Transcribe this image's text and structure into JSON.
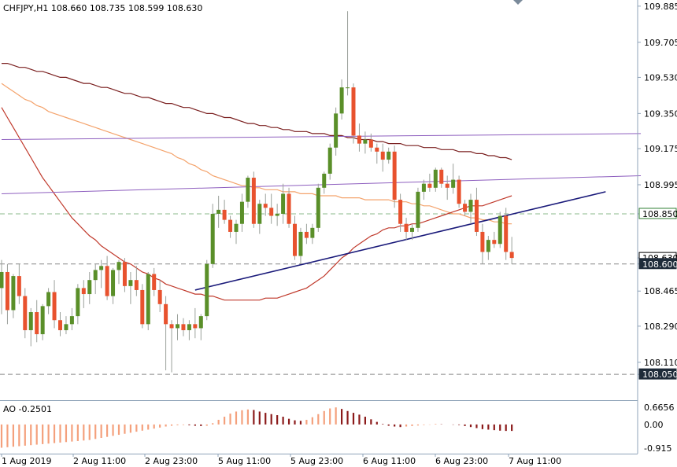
{
  "chart_data": {
    "type": "candlestick",
    "title": "CHFJPY,H1  108.660 108.735 108.599 108.630",
    "symbol": "CHFJPY",
    "timeframe": "H1",
    "ohlc_header": "108.660 108.735 108.599 108.630",
    "last_open": 108.66,
    "last_high": 108.735,
    "last_low": 108.599,
    "last_close": 108.63,
    "ylim": [
      107.98,
      109.9
    ],
    "y_ticks": [
      "109.885",
      "109.705",
      "109.530",
      "109.350",
      "109.175",
      "108.995",
      "108.850",
      "108.630",
      "108.600",
      "108.465",
      "108.290",
      "108.110",
      "108.050"
    ],
    "x_ticks": [
      "1 Aug 2019",
      "2 Aug 11:00",
      "2 Aug 23:00",
      "5 Aug 11:00",
      "5 Aug 23:00",
      "6 Aug 11:00",
      "6 Aug 23:00",
      "7 Aug 11:00"
    ],
    "price_labels": [
      {
        "value": 108.85,
        "text": "108.850",
        "bg": "#ffffff",
        "fg": "#000000",
        "border": "#2e7d32"
      },
      {
        "value": 108.63,
        "text": "108.630",
        "bg": "#ffffff",
        "fg": "#000000",
        "border": "#000000"
      },
      {
        "value": 108.6,
        "text": "108.600",
        "bg": "#1e2b39",
        "fg": "#ffffff",
        "border": "#1e2b39"
      },
      {
        "value": 108.05,
        "text": "108.050",
        "bg": "#1e2b39",
        "fg": "#ffffff",
        "border": "#1e2b39"
      }
    ],
    "horizontal_levels": [
      {
        "value": 108.85,
        "style": "dashed",
        "color": "#8bb88b"
      },
      {
        "value": 108.6,
        "style": "dashed",
        "color": "#888888"
      },
      {
        "value": 108.05,
        "style": "dashed",
        "color": "#888888"
      }
    ],
    "candles": [
      [
        108.48,
        108.62,
        108.35,
        108.56
      ],
      [
        108.56,
        108.6,
        108.3,
        108.37
      ],
      [
        108.37,
        108.55,
        108.33,
        108.54
      ],
      [
        108.54,
        108.6,
        108.4,
        108.44
      ],
      [
        108.44,
        108.48,
        108.23,
        108.27
      ],
      [
        108.27,
        108.38,
        108.19,
        108.36
      ],
      [
        108.36,
        108.42,
        108.21,
        108.25
      ],
      [
        108.25,
        108.4,
        108.22,
        108.39
      ],
      [
        108.39,
        108.48,
        108.35,
        108.46
      ],
      [
        108.46,
        108.52,
        108.28,
        108.32
      ],
      [
        108.32,
        108.36,
        108.24,
        108.27
      ],
      [
        108.27,
        108.34,
        108.25,
        108.3
      ],
      [
        108.3,
        108.38,
        108.27,
        108.34
      ],
      [
        108.34,
        108.5,
        108.3,
        108.48
      ],
      [
        108.48,
        108.52,
        108.38,
        108.45
      ],
      [
        108.45,
        108.56,
        108.4,
        108.52
      ],
      [
        108.52,
        108.6,
        108.45,
        108.57
      ],
      [
        108.57,
        108.62,
        108.48,
        108.59
      ],
      [
        108.59,
        108.64,
        108.42,
        108.44
      ],
      [
        108.44,
        108.58,
        108.4,
        108.57
      ],
      [
        108.57,
        108.62,
        108.5,
        108.61
      ],
      [
        108.61,
        108.63,
        108.46,
        108.49
      ],
      [
        108.49,
        108.56,
        108.4,
        108.52
      ],
      [
        108.52,
        108.59,
        108.44,
        108.47
      ],
      [
        108.47,
        108.5,
        108.28,
        108.3
      ],
      [
        108.3,
        108.56,
        108.27,
        108.55
      ],
      [
        108.55,
        108.58,
        108.44,
        108.47
      ],
      [
        108.47,
        108.52,
        108.36,
        108.4
      ],
      [
        108.4,
        108.44,
        108.07,
        108.3
      ],
      [
        108.3,
        108.32,
        108.06,
        108.28
      ],
      [
        108.28,
        108.35,
        108.22,
        108.3
      ],
      [
        108.3,
        108.33,
        108.24,
        108.27
      ],
      [
        108.27,
        108.32,
        108.22,
        108.3
      ],
      [
        108.3,
        108.38,
        108.23,
        108.28
      ],
      [
        108.28,
        108.35,
        108.22,
        108.34
      ],
      [
        108.34,
        108.62,
        108.32,
        108.6
      ],
      [
        108.6,
        108.9,
        108.58,
        108.85
      ],
      [
        108.85,
        108.94,
        108.78,
        108.87
      ],
      [
        108.87,
        108.92,
        108.8,
        108.82
      ],
      [
        108.82,
        108.84,
        108.73,
        108.76
      ],
      [
        108.76,
        108.82,
        108.7,
        108.8
      ],
      [
        108.8,
        108.95,
        108.76,
        108.91
      ],
      [
        108.91,
        109.04,
        108.88,
        109.03
      ],
      [
        109.03,
        109.06,
        108.78,
        108.8
      ],
      [
        108.8,
        108.92,
        108.75,
        108.9
      ],
      [
        108.9,
        108.95,
        108.84,
        108.88
      ],
      [
        108.88,
        108.95,
        108.8,
        108.84
      ],
      [
        108.84,
        108.9,
        108.79,
        108.85
      ],
      [
        108.85,
        109.0,
        108.8,
        108.95
      ],
      [
        108.95,
        108.98,
        108.78,
        108.8
      ],
      [
        108.8,
        108.84,
        108.62,
        108.64
      ],
      [
        108.64,
        108.78,
        108.6,
        108.76
      ],
      [
        108.76,
        108.8,
        108.7,
        108.73
      ],
      [
        108.73,
        108.8,
        108.7,
        108.78
      ],
      [
        108.78,
        109.0,
        108.76,
        108.98
      ],
      [
        108.98,
        109.06,
        108.95,
        109.05
      ],
      [
        109.05,
        109.2,
        109.02,
        109.18
      ],
      [
        109.18,
        109.38,
        109.14,
        109.35
      ],
      [
        109.35,
        109.52,
        109.32,
        109.48
      ],
      [
        109.48,
        109.86,
        109.44,
        109.48
      ],
      [
        109.48,
        109.5,
        109.2,
        109.24
      ],
      [
        109.24,
        109.3,
        109.16,
        109.2
      ],
      [
        109.2,
        109.26,
        109.15,
        109.22
      ],
      [
        109.22,
        109.25,
        109.16,
        109.18
      ],
      [
        109.18,
        109.2,
        109.1,
        109.16
      ],
      [
        109.16,
        109.2,
        109.06,
        109.12
      ],
      [
        109.12,
        109.18,
        109.1,
        109.16
      ],
      [
        109.16,
        109.19,
        108.88,
        108.92
      ],
      [
        108.92,
        108.95,
        108.76,
        108.8
      ],
      [
        108.8,
        108.83,
        108.72,
        108.76
      ],
      [
        108.76,
        108.8,
        108.72,
        108.78
      ],
      [
        108.78,
        108.98,
        108.76,
        108.96
      ],
      [
        108.96,
        109.02,
        108.92,
        109.0
      ],
      [
        109.0,
        109.05,
        108.96,
        108.98
      ],
      [
        108.98,
        109.08,
        108.96,
        109.07
      ],
      [
        109.07,
        109.08,
        108.98,
        109.0
      ],
      [
        109.0,
        109.04,
        108.92,
        108.98
      ],
      [
        108.98,
        109.1,
        108.95,
        109.02
      ],
      [
        109.02,
        109.04,
        108.88,
        108.9
      ],
      [
        108.9,
        108.92,
        108.84,
        108.86
      ],
      [
        108.86,
        108.95,
        108.8,
        108.92
      ],
      [
        108.92,
        108.98,
        108.74,
        108.76
      ],
      [
        108.76,
        108.8,
        108.6,
        108.66
      ],
      [
        108.66,
        108.74,
        108.62,
        108.72
      ],
      [
        108.72,
        108.76,
        108.68,
        108.7
      ],
      [
        108.7,
        108.86,
        108.68,
        108.84
      ],
      [
        108.84,
        108.88,
        108.62,
        108.66
      ],
      [
        108.66,
        108.735,
        108.599,
        108.63
      ]
    ],
    "series": [
      {
        "name": "",
        "color": "#7a1f1f",
        "values": [
          109.6,
          109.6,
          109.59,
          109.58,
          109.58,
          109.57,
          109.56,
          109.56,
          109.55,
          109.54,
          109.53,
          109.53,
          109.52,
          109.51,
          109.5,
          109.5,
          109.49,
          109.48,
          109.48,
          109.47,
          109.46,
          109.45,
          109.45,
          109.44,
          109.43,
          109.43,
          109.42,
          109.41,
          109.4,
          109.4,
          109.39,
          109.38,
          109.38,
          109.37,
          109.36,
          109.35,
          109.35,
          109.34,
          109.33,
          109.33,
          109.32,
          109.31,
          109.3,
          109.3,
          109.29,
          109.29,
          109.28,
          109.28,
          109.27,
          109.27,
          109.26,
          109.26,
          109.26,
          109.25,
          109.25,
          109.25,
          109.24,
          109.24,
          109.24,
          109.23,
          109.23,
          109.22,
          109.22,
          109.22,
          109.21,
          109.21,
          109.2,
          109.2,
          109.2,
          109.19,
          109.19,
          109.19,
          109.18,
          109.18,
          109.18,
          109.17,
          109.17,
          109.17,
          109.16,
          109.16,
          109.16,
          109.15,
          109.15,
          109.14,
          109.14,
          109.13,
          109.13,
          109.12
        ]
      },
      {
        "name": "",
        "color": "#f4a36c",
        "values": [
          109.5,
          109.48,
          109.46,
          109.44,
          109.42,
          109.41,
          109.39,
          109.38,
          109.36,
          109.35,
          109.34,
          109.33,
          109.32,
          109.31,
          109.3,
          109.29,
          109.28,
          109.27,
          109.26,
          109.25,
          109.24,
          109.23,
          109.22,
          109.21,
          109.2,
          109.19,
          109.18,
          109.17,
          109.16,
          109.15,
          109.13,
          109.12,
          109.1,
          109.09,
          109.07,
          109.06,
          109.04,
          109.03,
          109.02,
          109.01,
          109.0,
          108.99,
          108.99,
          108.98,
          108.98,
          108.97,
          108.97,
          108.97,
          108.96,
          108.96,
          108.96,
          108.95,
          108.95,
          108.95,
          108.94,
          108.94,
          108.94,
          108.94,
          108.93,
          108.93,
          108.93,
          108.93,
          108.92,
          108.92,
          108.92,
          108.92,
          108.92,
          108.91,
          108.91,
          108.91,
          108.9,
          108.9,
          108.89,
          108.89,
          108.88,
          108.87,
          108.86,
          108.85,
          108.85,
          108.84,
          108.83,
          108.83,
          108.82,
          108.82,
          108.81,
          108.81,
          108.8,
          108.8
        ]
      },
      {
        "name": "",
        "color": "#c0392b",
        "values": [
          109.38,
          109.33,
          109.28,
          109.23,
          109.18,
          109.13,
          109.08,
          109.03,
          108.99,
          108.95,
          108.91,
          108.87,
          108.83,
          108.8,
          108.77,
          108.74,
          108.72,
          108.69,
          108.67,
          108.65,
          108.63,
          108.61,
          108.6,
          108.58,
          108.56,
          108.55,
          108.53,
          108.52,
          108.5,
          108.49,
          108.48,
          108.47,
          108.46,
          108.45,
          108.45,
          108.44,
          108.44,
          108.43,
          108.42,
          108.42,
          108.42,
          108.42,
          108.42,
          108.42,
          108.42,
          108.43,
          108.43,
          108.43,
          108.44,
          108.45,
          108.46,
          108.47,
          108.48,
          108.5,
          108.52,
          108.54,
          108.57,
          108.6,
          108.63,
          108.65,
          108.68,
          108.7,
          108.72,
          108.74,
          108.75,
          108.77,
          108.78,
          108.78,
          108.79,
          108.79,
          108.8,
          108.8,
          108.81,
          108.82,
          108.83,
          108.84,
          108.85,
          108.86,
          108.87,
          108.88,
          108.89,
          108.89,
          108.89,
          108.9,
          108.91,
          108.92,
          108.93,
          108.94
        ]
      }
    ],
    "trendlines": [
      {
        "name": "",
        "color": "#1a1a7a",
        "x": [
          33,
          103
        ],
        "y": [
          108.47,
          108.96
        ]
      },
      {
        "name": "",
        "color": "#8e5fbf",
        "x": [
          0,
          109
        ],
        "y": [
          108.95,
          109.04
        ]
      },
      {
        "name": "",
        "color": "#8e5fbf",
        "x": [
          0,
          109
        ],
        "y": [
          109.22,
          109.25
        ]
      }
    ],
    "indicator": {
      "label": "AO -0.2501",
      "name": "AO",
      "value": -0.2501,
      "ylim": [
        -0.915,
        0.6656
      ],
      "y_ticks": [
        "0.6656",
        "0.00",
        "-0.915"
      ],
      "values": [
        -0.9,
        -0.88,
        -0.86,
        -0.84,
        -0.82,
        -0.8,
        -0.78,
        -0.76,
        -0.74,
        -0.72,
        -0.7,
        -0.68,
        -0.66,
        -0.64,
        -0.62,
        -0.6,
        -0.56,
        -0.52,
        -0.48,
        -0.44,
        -0.4,
        -0.36,
        -0.32,
        -0.28,
        -0.24,
        -0.2,
        -0.16,
        -0.12,
        -0.08,
        -0.05,
        -0.03,
        -0.02,
        -0.03,
        -0.05,
        -0.06,
        -0.05,
        0.05,
        0.18,
        0.3,
        0.42,
        0.5,
        0.55,
        0.58,
        0.56,
        0.5,
        0.45,
        0.4,
        0.36,
        0.3,
        0.22,
        0.16,
        0.14,
        0.18,
        0.28,
        0.4,
        0.52,
        0.62,
        0.66,
        0.6,
        0.52,
        0.45,
        0.38,
        0.3,
        0.2,
        0.1,
        0.02,
        -0.05,
        -0.08,
        -0.1,
        -0.08,
        -0.06,
        -0.04,
        -0.02,
        -0.01,
        0.02,
        0.01,
        0.0,
        -0.01,
        -0.02,
        -0.06,
        -0.1,
        -0.14,
        -0.18,
        -0.2,
        -0.22,
        -0.24,
        -0.25,
        -0.2501
      ],
      "rising_color": "#f4a07c",
      "falling_color": "#8b1a1a"
    },
    "colors": {
      "bull": "#5a8f29",
      "bear": "#e8522e",
      "wick": "#9aa09a",
      "grid_axis": "#8fa3b8"
    }
  }
}
